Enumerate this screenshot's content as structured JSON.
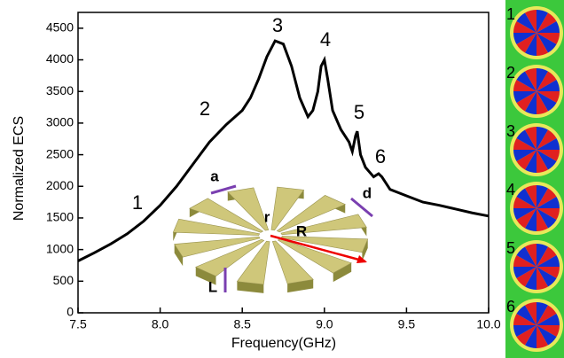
{
  "chart_data": {
    "type": "line",
    "x": [
      7.5,
      7.6,
      7.7,
      7.8,
      7.9,
      8.0,
      8.1,
      8.2,
      8.3,
      8.4,
      8.5,
      8.55,
      8.6,
      8.65,
      8.7,
      8.75,
      8.8,
      8.85,
      8.9,
      8.93,
      8.96,
      8.98,
      9.0,
      9.02,
      9.05,
      9.1,
      9.15,
      9.17,
      9.19,
      9.2,
      9.22,
      9.25,
      9.3,
      9.33,
      9.35,
      9.4,
      9.45,
      9.5,
      9.6,
      9.7,
      9.8,
      9.9,
      10.0
    ],
    "series": [
      {
        "color": "#000000",
        "values": [
          820,
          950,
          1090,
          1250,
          1450,
          1700,
          2000,
          2350,
          2700,
          2970,
          3200,
          3400,
          3700,
          4050,
          4300,
          4250,
          3900,
          3400,
          3100,
          3200,
          3500,
          3900,
          4000,
          3700,
          3200,
          2900,
          2700,
          2550,
          2800,
          2870,
          2500,
          2300,
          2150,
          2200,
          2150,
          1950,
          1900,
          1850,
          1750,
          1700,
          1640,
          1580,
          1530
        ]
      }
    ],
    "xlim": [
      7.5,
      10.0
    ],
    "xticks": [
      7.5,
      {
        "value": 8.0,
        "label": "8.0"
      },
      8.5,
      {
        "value": 9.0,
        "label": "9.0"
      },
      9.5,
      {
        "value": 10.0,
        "label": "10.0"
      }
    ],
    "ylim": [
      0,
      4750
    ],
    "yticks": [
      0,
      500,
      1000,
      1500,
      2000,
      2500,
      3000,
      3500,
      4000,
      4500
    ],
    "xlabel": "Frequency(GHz)",
    "ylabel": "Normalized ECS",
    "annotations": [
      "1",
      "2",
      "3",
      "4",
      "5",
      "6"
    ],
    "inset_labels": [
      "a",
      "r",
      "R",
      "d",
      "L"
    ],
    "mode_labels": [
      "1",
      "2",
      "3",
      "4",
      "5",
      "6"
    ]
  }
}
